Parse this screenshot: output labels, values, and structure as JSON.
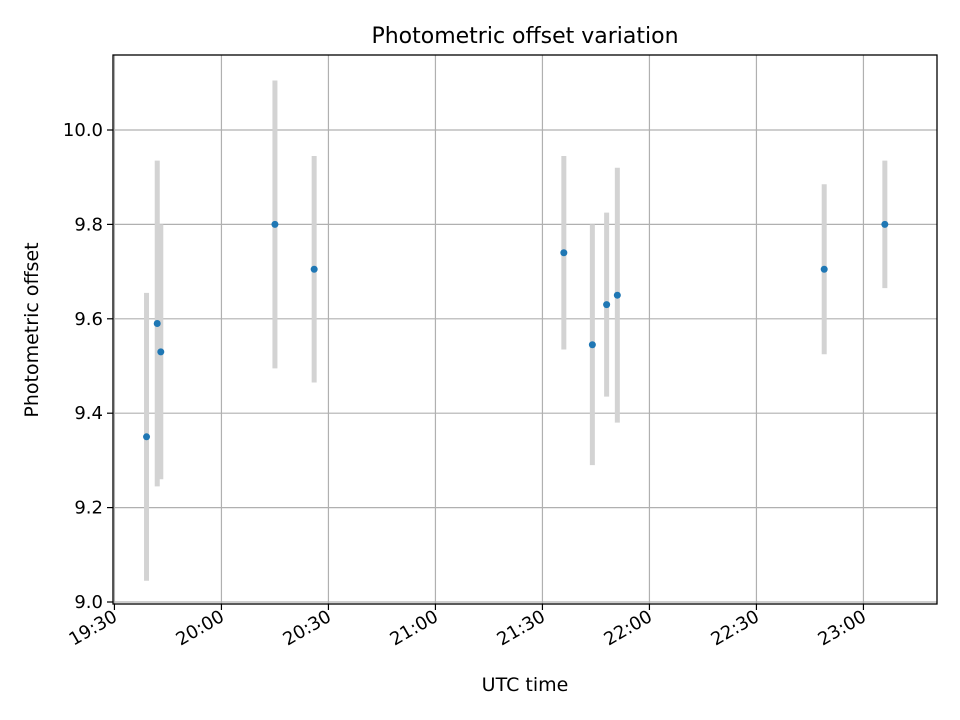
{
  "chart_data": {
    "type": "scatter",
    "title": "Photometric offset variation",
    "xlabel": "UTC time",
    "ylabel": "Photometric offset",
    "x_axis_type": "time",
    "xlim": [
      "19:30",
      "23:20"
    ],
    "ylim": [
      9.0,
      10.15
    ],
    "xticks": [
      "19:30",
      "20:00",
      "20:30",
      "21:00",
      "21:30",
      "22:00",
      "22:30",
      "23:00"
    ],
    "yticks": [
      "9.0",
      "9.2",
      "9.4",
      "9.6",
      "9.8",
      "10.0"
    ],
    "grid": true,
    "colors": {
      "point": "#1f77b4",
      "errorbar": "#d3d3d3",
      "grid": "#b0b0b0"
    },
    "points": [
      {
        "x": "19:39",
        "y": 9.35,
        "yerr": 0.305
      },
      {
        "x": "19:42",
        "y": 9.59,
        "yerr": 0.345
      },
      {
        "x": "19:43",
        "y": 9.53,
        "yerr": 0.27
      },
      {
        "x": "20:15",
        "y": 9.8,
        "yerr": 0.305
      },
      {
        "x": "20:26",
        "y": 9.705,
        "yerr": 0.24
      },
      {
        "x": "21:36",
        "y": 9.74,
        "yerr": 0.205
      },
      {
        "x": "21:44",
        "y": 9.545,
        "yerr": 0.255
      },
      {
        "x": "21:48",
        "y": 9.63,
        "yerr": 0.195
      },
      {
        "x": "21:51",
        "y": 9.65,
        "yerr": 0.27
      },
      {
        "x": "22:49",
        "y": 9.705,
        "yerr": 0.18
      },
      {
        "x": "23:06",
        "y": 9.8,
        "yerr": 0.135
      }
    ]
  }
}
